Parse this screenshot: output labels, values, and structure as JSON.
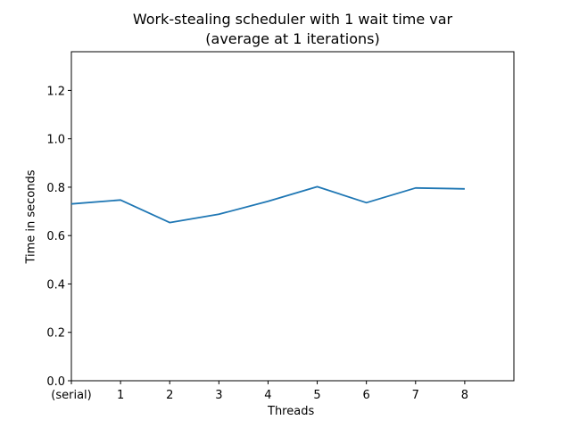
{
  "chart_data": {
    "type": "line",
    "title": "Work-stealing scheduler with 1 wait time var",
    "subtitle": "(average at 1 iterations)",
    "xlabel": "Threads",
    "ylabel": "Time in seconds",
    "x_tick_labels": [
      "(serial)",
      "1",
      "2",
      "3",
      "4",
      "5",
      "6",
      "7",
      "8"
    ],
    "y_tick_labels": [
      "0.0",
      "0.2",
      "0.4",
      "0.6",
      "0.8",
      "1.0",
      "1.2"
    ],
    "y_ticks": [
      0.0,
      0.2,
      0.4,
      0.6,
      0.8,
      1.0,
      1.2
    ],
    "xlim": [
      0,
      9
    ],
    "ylim": [
      0,
      1.36
    ],
    "grid": false,
    "series": [
      {
        "color": "#1f77b4",
        "x": [
          0,
          1,
          2,
          3,
          4,
          5,
          6,
          7,
          8
        ],
        "values": [
          0.731,
          0.747,
          0.654,
          0.688,
          0.742,
          0.802,
          0.736,
          0.797,
          0.793
        ]
      }
    ]
  }
}
